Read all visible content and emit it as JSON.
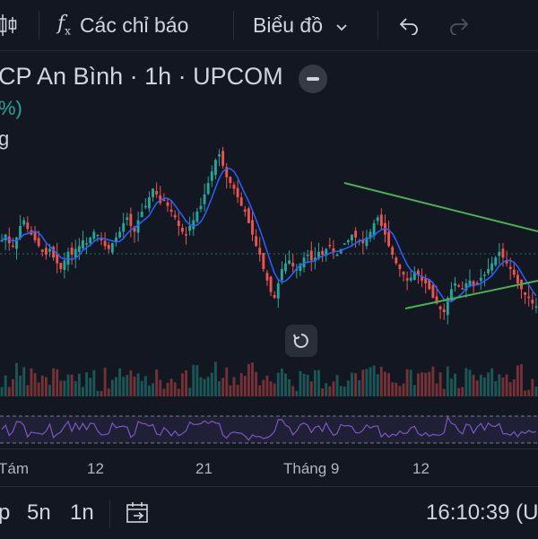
{
  "toolbar": {
    "indicators_label": "Các chỉ báo",
    "chart_type_label": "Biểu đồ"
  },
  "legend": {
    "symbol_title": "CP An Bình · 1h · UPCOM",
    "change_pct": "%)",
    "sub_label": "g"
  },
  "time_axis": {
    "ticks": [
      "Tám",
      "12",
      "21",
      "Tháng 9",
      "12"
    ]
  },
  "bottom_bar": {
    "ranges": [
      "p",
      "5n",
      "1n"
    ],
    "clock": "16:10:39 (U"
  },
  "colors": {
    "background": "#131722",
    "up": "#26a69a",
    "down": "#ef5350",
    "ma_line": "#2962ff",
    "trendline": "#4caf50",
    "rsi": "#7e57c2"
  },
  "chart_data": {
    "type": "candlestick",
    "close_series": [
      50,
      52,
      49,
      48,
      51,
      55,
      57,
      54,
      52,
      50,
      48,
      46,
      45,
      47,
      44,
      42,
      40,
      43,
      46,
      45,
      47,
      48,
      50,
      49,
      51,
      53,
      52,
      50,
      48,
      47,
      49,
      51,
      53,
      56,
      58,
      55,
      53,
      57,
      60,
      62,
      65,
      68,
      66,
      63,
      64,
      62,
      60,
      58,
      55,
      53,
      52,
      55,
      57,
      60,
      62,
      66,
      70,
      74,
      78,
      80,
      76,
      72,
      70,
      68,
      65,
      62,
      60,
      56,
      52,
      48,
      45,
      40,
      36,
      32,
      30,
      35,
      40,
      42,
      43,
      41,
      40,
      42,
      44,
      45,
      43,
      44,
      46,
      45,
      47,
      48,
      46,
      45,
      47,
      49,
      50,
      52,
      51,
      50,
      49,
      51,
      53,
      56,
      58,
      55,
      52,
      48,
      45,
      42,
      40,
      38,
      36,
      37,
      39,
      38,
      36,
      35,
      33,
      30,
      28,
      26,
      25,
      30,
      33,
      35,
      34,
      33,
      35,
      36,
      34,
      35,
      37,
      38,
      40,
      42,
      44,
      46,
      44,
      42,
      40,
      38,
      35,
      33,
      31,
      30,
      28,
      27
    ]
  }
}
